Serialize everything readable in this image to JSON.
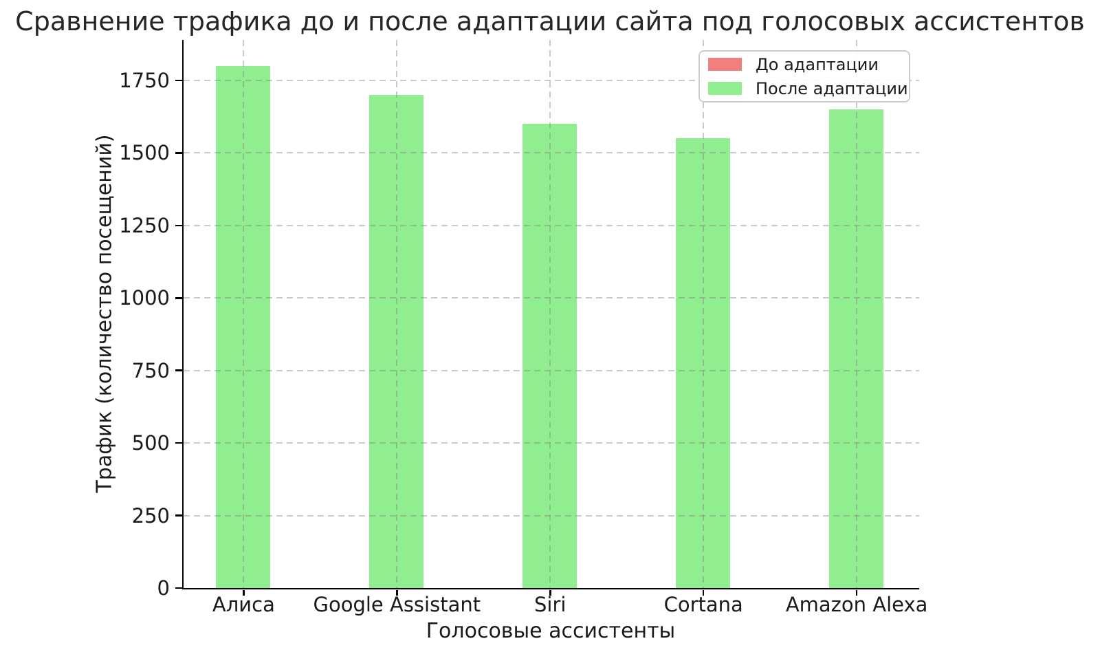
{
  "title": "Сравнение трафика до и после адаптации сайта под голосовых ассистентов",
  "chart_data": {
    "type": "bar",
    "title": "Сравнение трафика до и после адаптации сайта под голосовых ассистентов",
    "categories": [
      "Алиса",
      "Google Assistant",
      "Siri",
      "Cortana",
      "Amazon Alexa"
    ],
    "series": [
      {
        "name": "До адаптации",
        "color": "#f08080",
        "values": null,
        "visible_in_plot": false,
        "note": "legend entry only; bars fully hidden behind the 'После адаптации' bars"
      },
      {
        "name": "После адаптации",
        "color": "#90ee90",
        "values": [
          1800,
          1700,
          1600,
          1550,
          1650
        ],
        "visible_in_plot": true
      }
    ],
    "xlabel": "Голосовые ассистенты",
    "ylabel": "Трафик (количество посещений)",
    "yticks": [
      0,
      250,
      500,
      750,
      1000,
      1250,
      1500,
      1750
    ],
    "ylim": [
      0,
      1890
    ],
    "grid": true,
    "grid_style": "dashed",
    "grid_above_bars": true,
    "legend_position": "upper right"
  },
  "colors": {
    "before_bar": "#f08080",
    "after_bar": "#90ee90",
    "grid": "#cccccc",
    "spine": "#000000",
    "text": "#1a1a1a",
    "legend_border": "#cccccc",
    "background": "#ffffff"
  }
}
